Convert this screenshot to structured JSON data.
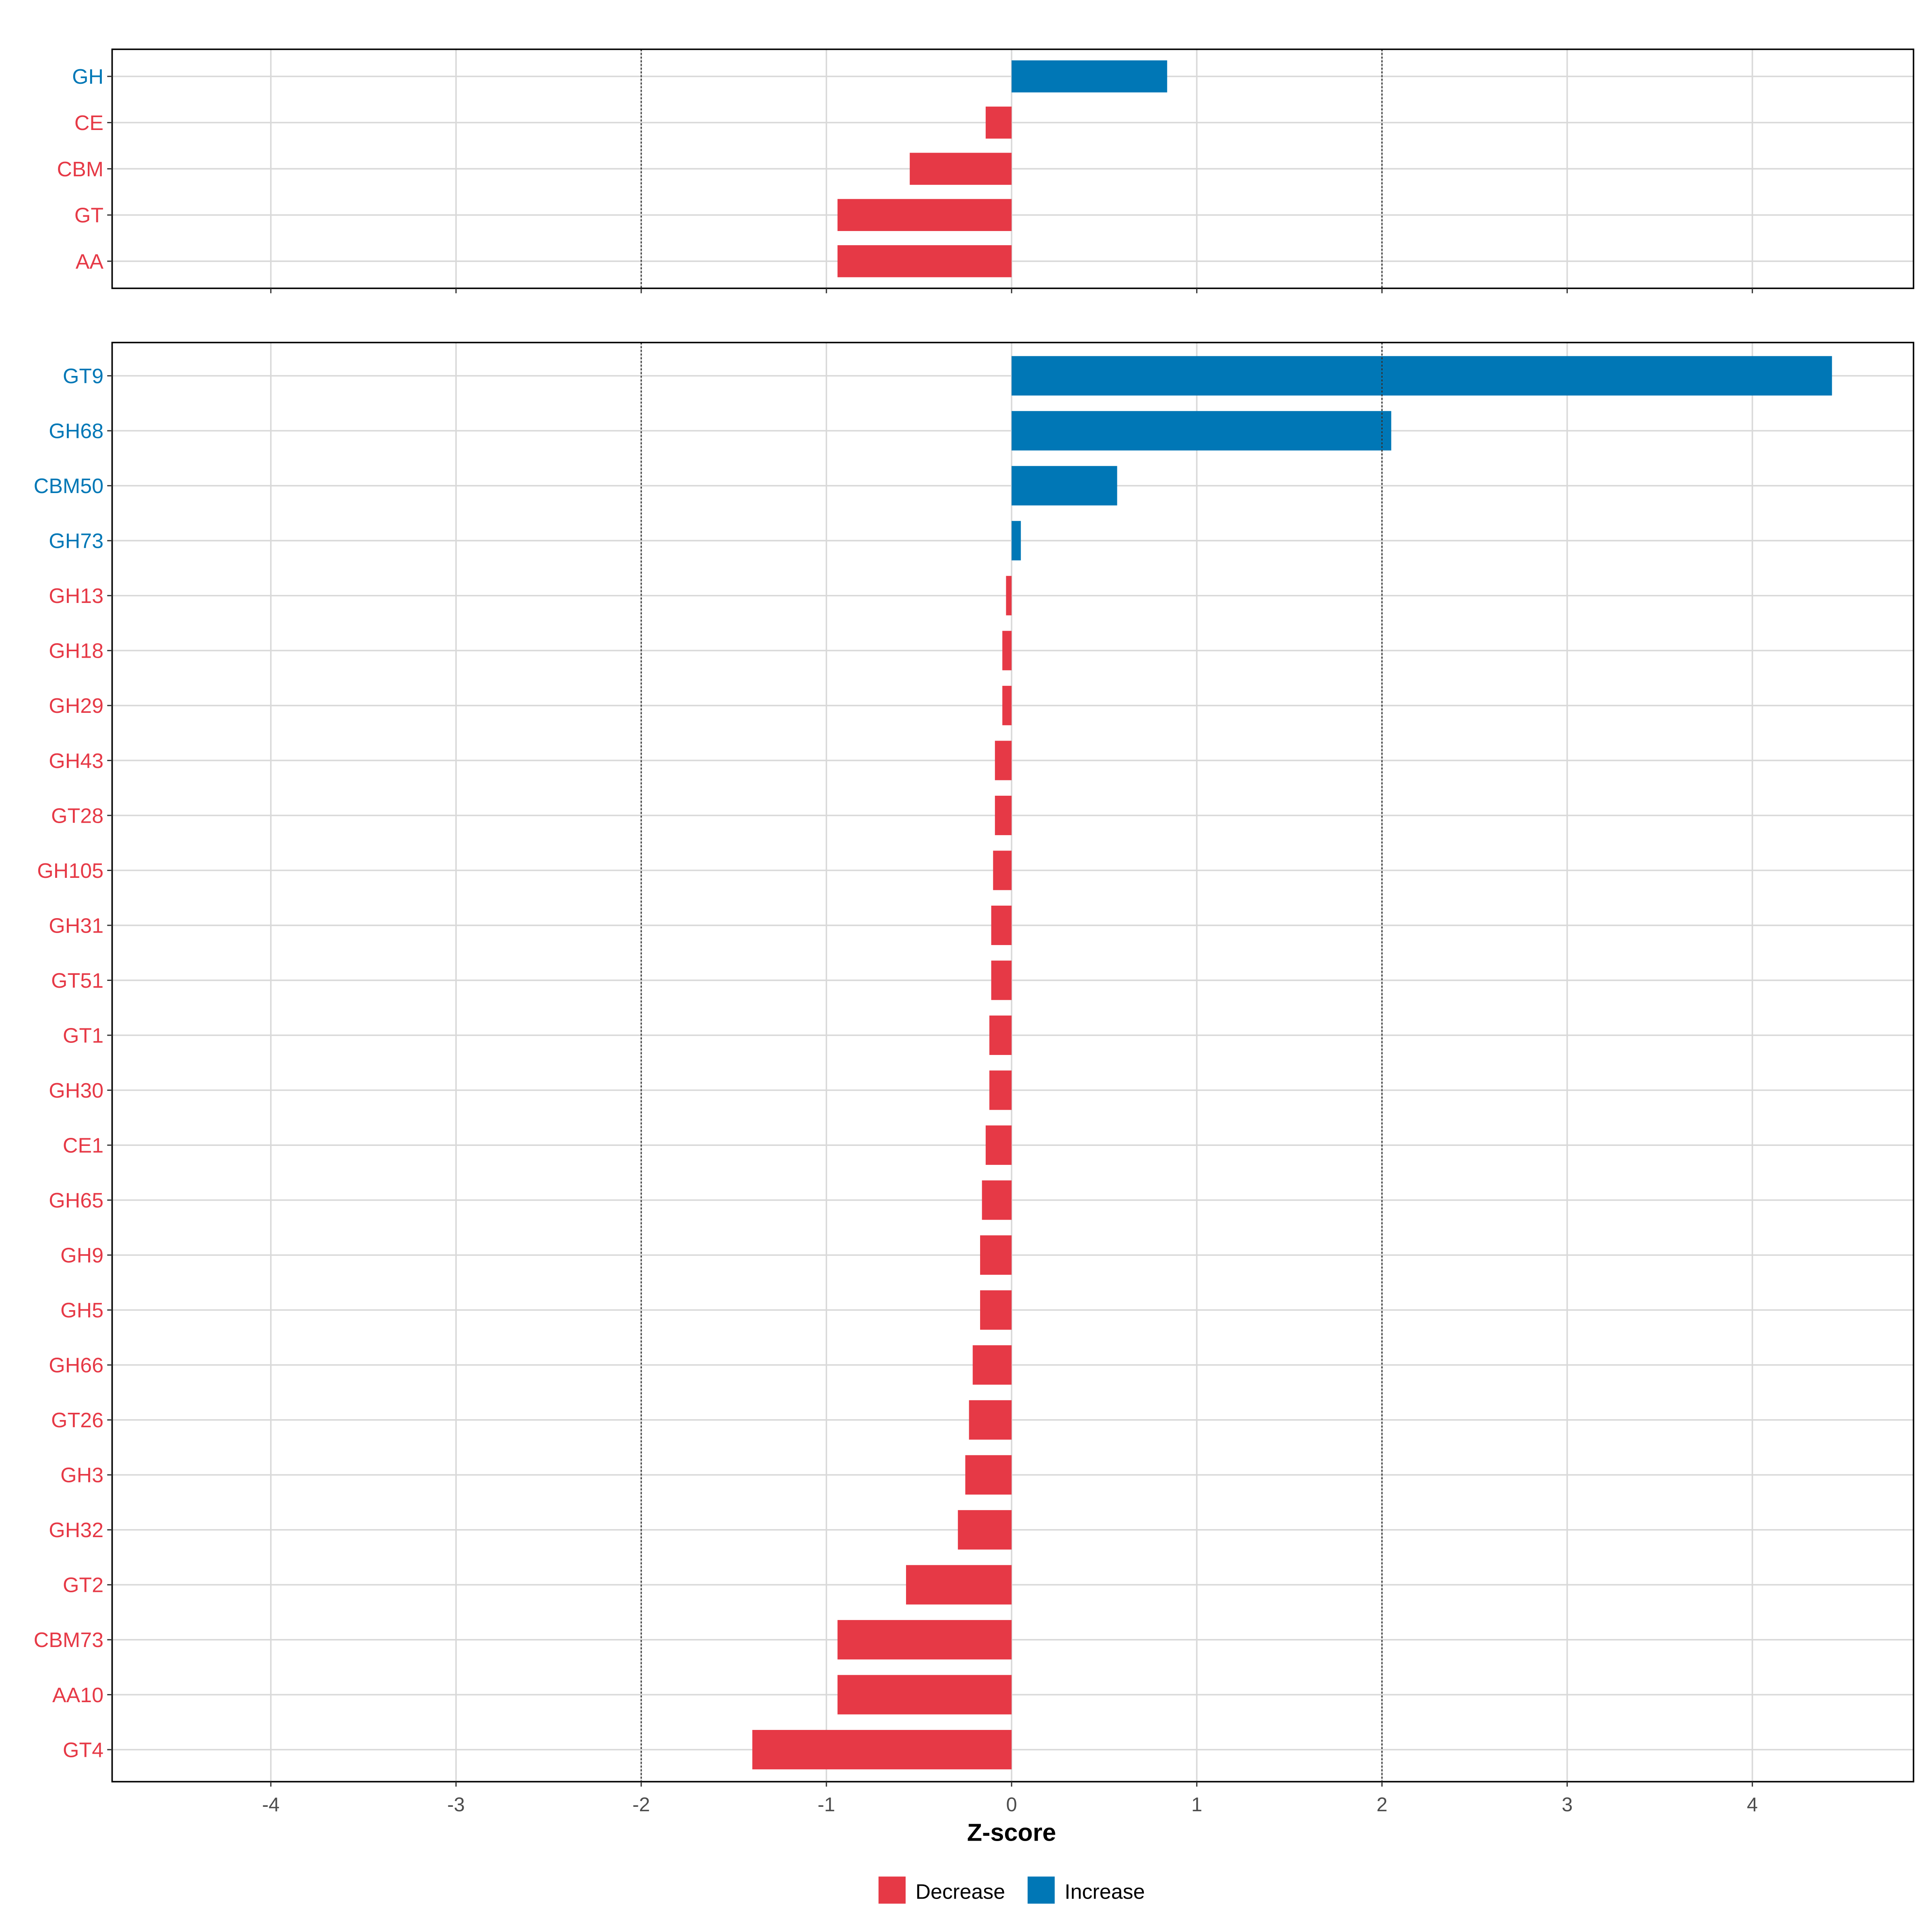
{
  "chart_data": [
    {
      "type": "bar",
      "orientation": "horizontal",
      "panel": "top",
      "categories": [
        "GH",
        "CE",
        "CBM",
        "GT",
        "AA"
      ],
      "values": [
        0.84,
        -0.14,
        -0.55,
        -0.94,
        -0.94
      ],
      "xlim": [
        -4.8,
        4.9
      ],
      "reference_lines": [
        -2,
        2
      ]
    },
    {
      "type": "bar",
      "orientation": "horizontal",
      "panel": "bottom",
      "categories": [
        "GT9",
        "GH68",
        "CBM50",
        "GH73",
        "GH13",
        "GH18",
        "GH29",
        "GH43",
        "GT28",
        "GH105",
        "GH31",
        "GT51",
        "GT1",
        "GH30",
        "CE1",
        "GH65",
        "GH9",
        "GH5",
        "GH66",
        "GT26",
        "GH3",
        "GH32",
        "GT2",
        "CBM73",
        "AA10",
        "GT4"
      ],
      "values": [
        4.43,
        2.05,
        0.57,
        0.05,
        -0.03,
        -0.05,
        -0.05,
        -0.09,
        -0.09,
        -0.1,
        -0.11,
        -0.11,
        -0.12,
        -0.12,
        -0.14,
        -0.16,
        -0.17,
        -0.17,
        -0.21,
        -0.23,
        -0.25,
        -0.29,
        -0.57,
        -0.94,
        -0.94,
        -1.4
      ],
      "xlim": [
        -4.8,
        4.9
      ],
      "xticks": [
        "-4",
        "-3",
        "-2",
        "-1",
        "0",
        "1",
        "2",
        "3",
        "4"
      ],
      "xtick_values": [
        -4,
        -3,
        -2,
        -1,
        0,
        1,
        2,
        3,
        4
      ],
      "xlabel": "Z-score",
      "reference_lines": [
        -2,
        2
      ]
    }
  ],
  "legend": {
    "placement": "bottom",
    "items": [
      {
        "label": "Decrease",
        "color": "#E63946"
      },
      {
        "label": "Increase",
        "color": "#0077B6"
      }
    ]
  },
  "colors": {
    "decrease": "#E63946",
    "increase": "#0077B6"
  }
}
